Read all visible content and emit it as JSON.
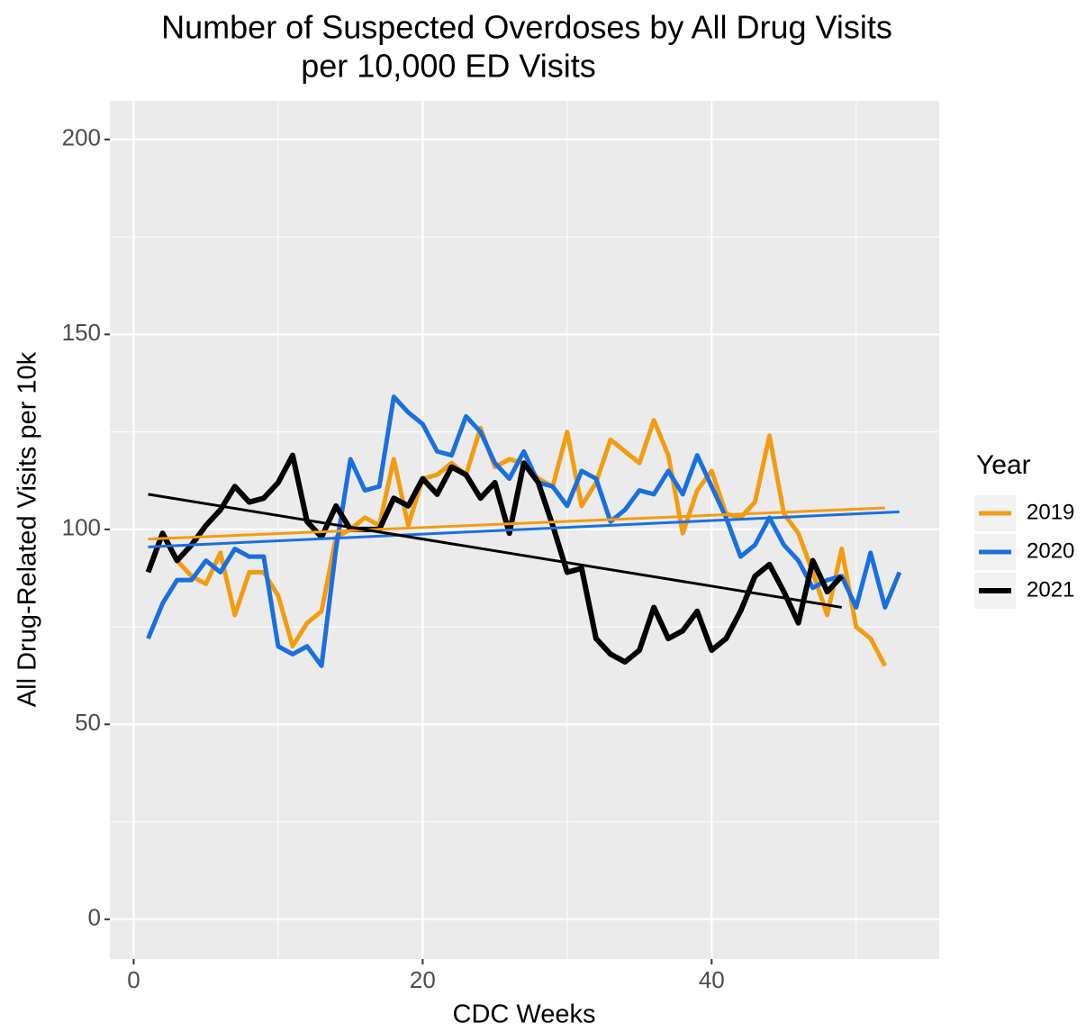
{
  "chart_data": {
    "type": "line",
    "title": [
      "Number of Suspected Overdoses by All Drug Visits",
      "per 10,000 ED Visits"
    ],
    "x_label": "CDC Weeks",
    "y_label": "All Drug-Related Visits per 10k",
    "legend_title": "Year",
    "legend": "right",
    "grid": true,
    "background": "#ebebeb",
    "xlim": [
      -1.65,
      55.75
    ],
    "ylim": [
      -10.2,
      209.9
    ],
    "xticks": [
      0,
      20,
      40
    ],
    "yticks": [
      0,
      50,
      100,
      150,
      200
    ],
    "xminor": [
      10,
      30,
      50
    ],
    "yminor": [
      25,
      75,
      125,
      175
    ],
    "x": [
      1,
      2,
      3,
      4,
      5,
      6,
      7,
      8,
      9,
      10,
      11,
      12,
      13,
      14,
      15,
      16,
      17,
      18,
      19,
      20,
      21,
      22,
      23,
      24,
      25,
      26,
      27,
      28,
      29,
      30,
      31,
      32,
      33,
      34,
      35,
      36,
      37,
      38,
      39,
      40,
      41,
      42,
      43,
      44,
      45,
      46,
      47,
      48,
      49,
      50,
      51,
      52,
      53
    ],
    "series": [
      {
        "name": "2019",
        "color": "#f39c12",
        "width": 5,
        "values": [
          null,
          99,
          92,
          88,
          86,
          94,
          78,
          89,
          89,
          83,
          70,
          76,
          79,
          98,
          100,
          103,
          101,
          118,
          101,
          113,
          114,
          117,
          114,
          126,
          116,
          118,
          117,
          113,
          111,
          125,
          106,
          112,
          123,
          120,
          117,
          128,
          119,
          99,
          110,
          115,
          104,
          103,
          107,
          124,
          104,
          99,
          89,
          78,
          95,
          75,
          72,
          65,
          null
        ],
        "trend": {
          "x": [
            1,
            52
          ],
          "values": [
            97.5,
            105.5
          ]
        }
      },
      {
        "name": "2020",
        "color": "#1a6fe0",
        "width": 5,
        "values": [
          72,
          81,
          87,
          87,
          92,
          89,
          95,
          93,
          93,
          70,
          68,
          70,
          65,
          95,
          118,
          110,
          111,
          134,
          130,
          127,
          120,
          119,
          129,
          125,
          117,
          113,
          120,
          112,
          111,
          106,
          115,
          113,
          102,
          105,
          110,
          109,
          115,
          109,
          119,
          111,
          103,
          93,
          96,
          103,
          96,
          92,
          85,
          87,
          88,
          80,
          94,
          80,
          89
        ],
        "trend": {
          "x": [
            1,
            53
          ],
          "values": [
            95.5,
            104.5
          ]
        }
      },
      {
        "name": "2021",
        "color": "#000000",
        "width": 6,
        "values": [
          89,
          99,
          92,
          96,
          101,
          105,
          111,
          107,
          108,
          112,
          119,
          102,
          98,
          106,
          100,
          100,
          100,
          108,
          106,
          113,
          109,
          116,
          114,
          108,
          112,
          99,
          117,
          112,
          101,
          89,
          90,
          72,
          68,
          66,
          69,
          80,
          72,
          74,
          79,
          69,
          72,
          79,
          88,
          91,
          84,
          76,
          92,
          84,
          88,
          null,
          null,
          null,
          null
        ],
        "trend": {
          "x": [
            1,
            49
          ],
          "values": [
            109,
            80
          ]
        }
      }
    ]
  }
}
